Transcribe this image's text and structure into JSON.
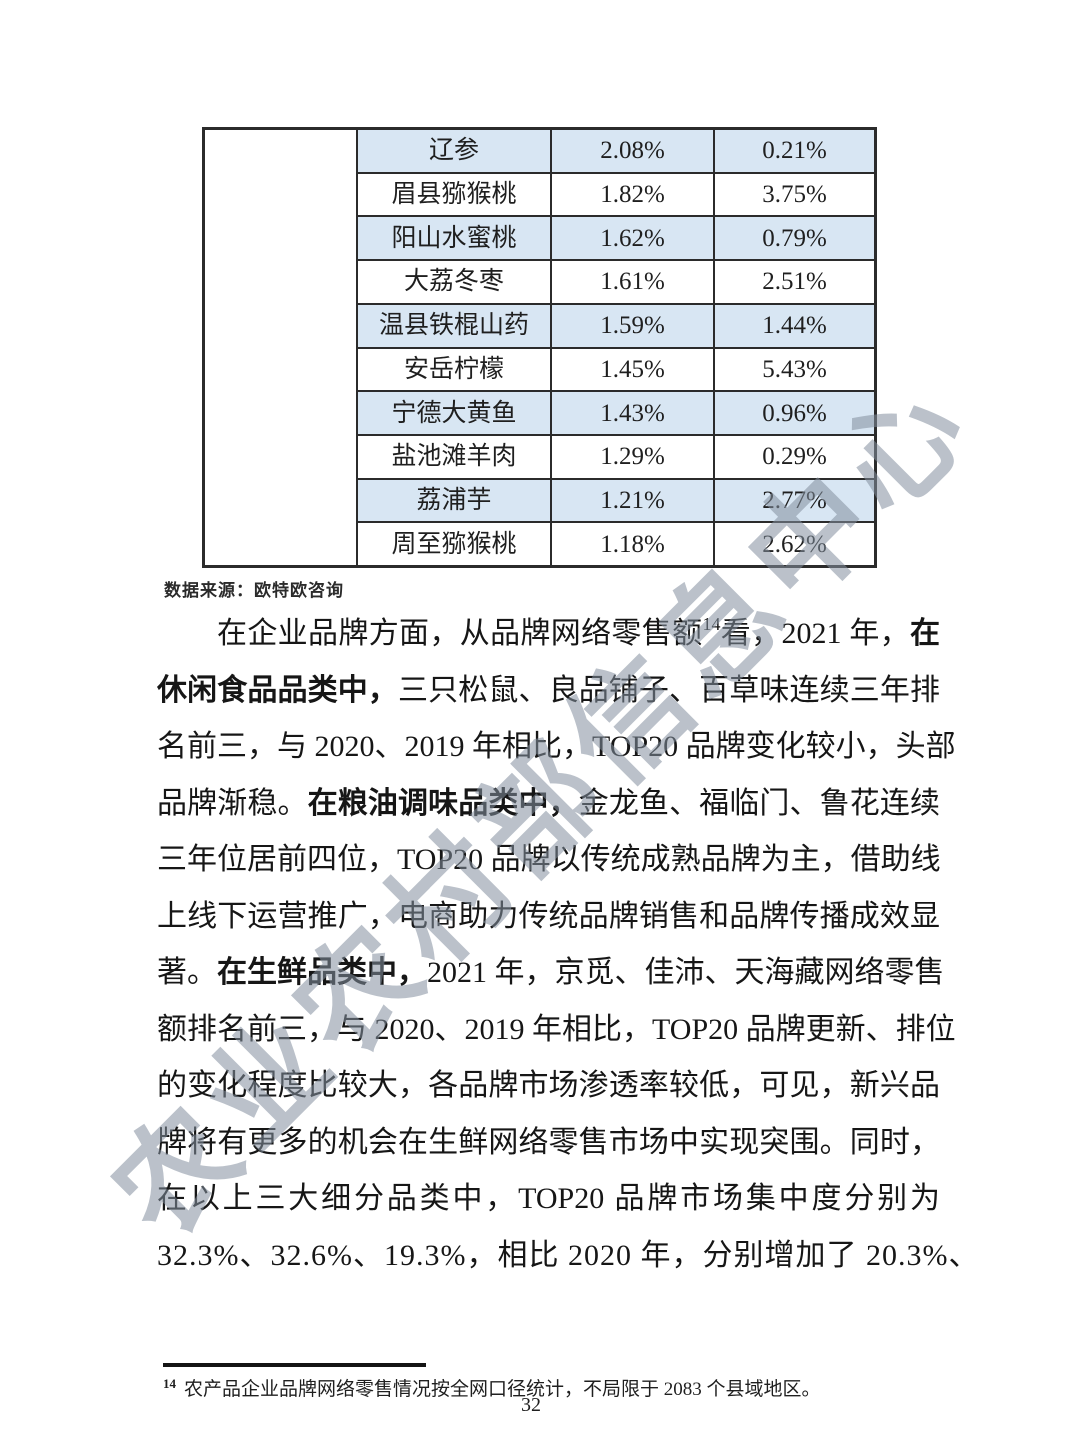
{
  "watermark": {
    "text": "农业农村部信息中心",
    "color": "#84909f"
  },
  "table": {
    "shade_color": "#d8e6f3",
    "merged_first_column_empty": true,
    "rows": [
      {
        "name": "辽参",
        "share1": "2.08%",
        "share2": "0.21%",
        "shaded": true
      },
      {
        "name": "眉县猕猴桃",
        "share1": "1.82%",
        "share2": "3.75%",
        "shaded": false
      },
      {
        "name": "阳山水蜜桃",
        "share1": "1.62%",
        "share2": "0.79%",
        "shaded": true
      },
      {
        "name": "大荔冬枣",
        "share1": "1.61%",
        "share2": "2.51%",
        "shaded": false
      },
      {
        "name": "温县铁棍山药",
        "share1": "1.59%",
        "share2": "1.44%",
        "shaded": true
      },
      {
        "name": "安岳柠檬",
        "share1": "1.45%",
        "share2": "5.43%",
        "shaded": false
      },
      {
        "name": "宁德大黄鱼",
        "share1": "1.43%",
        "share2": "0.96%",
        "shaded": true
      },
      {
        "name": "盐池滩羊肉",
        "share1": "1.29%",
        "share2": "0.29%",
        "shaded": false
      },
      {
        "name": "荔浦芋",
        "share1": "1.21%",
        "share2": "2.77%",
        "shaded": true
      },
      {
        "name": "周至猕猴桃",
        "share1": "1.18%",
        "share2": "2.62%",
        "shaded": false
      }
    ]
  },
  "source_note": "数据来源：欧特欧咨询",
  "body": {
    "lines": [
      {
        "indent": true,
        "stretch": true,
        "segments": [
          {
            "t": "在企业品牌方面，从品牌网络零售额"
          },
          {
            "t": "14",
            "style": "sup"
          },
          {
            "t": "看，2021 年，"
          },
          {
            "t": "在",
            "style": "bold"
          }
        ]
      },
      {
        "stretch": true,
        "segments": [
          {
            "t": "休闲食品品类中，",
            "style": "bold"
          },
          {
            "t": "三只松鼠、良品铺子、百草味连续三年排"
          }
        ]
      },
      {
        "stretch": true,
        "segments": [
          {
            "t": "名前三，与 2020、2019 年相比，TOP20 品牌变化较小，头部"
          }
        ]
      },
      {
        "stretch": true,
        "segments": [
          {
            "t": "品牌渐稳。"
          },
          {
            "t": "在粮油调味品类中，",
            "style": "bold"
          },
          {
            "t": "金龙鱼、福临门、鲁花连续"
          }
        ]
      },
      {
        "stretch": true,
        "segments": [
          {
            "t": "三年位居前四位，TOP20 品牌以传统成熟品牌为主，借助线"
          }
        ]
      },
      {
        "stretch": true,
        "segments": [
          {
            "t": "上线下运营推广，电商助力传统品牌销售和品牌传播成效显"
          }
        ]
      },
      {
        "stretch": true,
        "segments": [
          {
            "t": "著。"
          },
          {
            "t": "在生鲜品类中，",
            "style": "bold"
          },
          {
            "t": "2021 年，京觅、佳沛、天海藏网络零售"
          }
        ]
      },
      {
        "stretch": true,
        "segments": [
          {
            "t": "额排名前三，与 2020、2019 年相比，TOP20 品牌更新、排位"
          }
        ]
      },
      {
        "stretch": true,
        "segments": [
          {
            "t": "的变化程度比较大，各品牌市场渗透率较低，可见，新兴品"
          }
        ]
      },
      {
        "stretch": true,
        "segments": [
          {
            "t": "牌将有更多的机会在生鲜网络零售市场中实现突围。同时，"
          }
        ]
      },
      {
        "stretch": true,
        "segments": [
          {
            "t": "在以上三大细分品类中，TOP20 品牌市场集中度分别为"
          }
        ]
      },
      {
        "stretch": false,
        "segments": [
          {
            "t": "32.3%、32.6%、19.3%，相比 2020 年，分别增加了 20.3%、"
          }
        ]
      }
    ]
  },
  "footnote": {
    "marker": "14",
    "text": "农产品企业品牌网络零售情况按全网口径统计，不局限于 2083 个县域地区。"
  },
  "page_number": "32"
}
